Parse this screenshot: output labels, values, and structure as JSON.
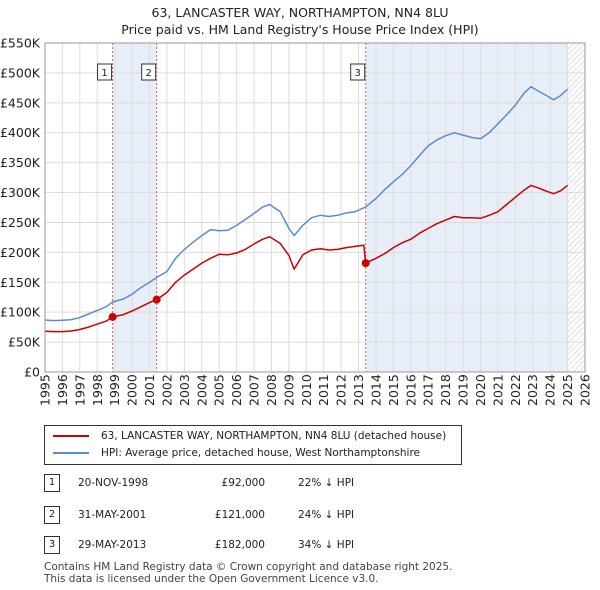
{
  "title_line1": "63, LANCASTER WAY, NORTHAMPTON, NN4 8LU",
  "title_line2": "Price paid vs. HM Land Registry's House Price Index (HPI)",
  "legend": {
    "property_label": "63, LANCASTER WAY, NORTHAMPTON, NN4 8LU (detached house)",
    "hpi_label": "HPI: Average price, detached house, West Northamptonshire"
  },
  "colors": {
    "property": "#cc0000",
    "hpi": "#5b8ccc",
    "band": "#e8eef8",
    "marker_line": "#cc6666",
    "grid": "#dddddd"
  },
  "sales": [
    {
      "num": "1",
      "date": "20-NOV-1998",
      "price": "£92,000",
      "hpi": "22% ↓ HPI"
    },
    {
      "num": "2",
      "date": "31-MAY-2001",
      "price": "£121,000",
      "hpi": "24% ↓ HPI"
    },
    {
      "num": "3",
      "date": "29-MAY-2013",
      "price": "£182,000",
      "hpi": "34% ↓ HPI"
    }
  ],
  "footer_line1": "Contains HM Land Registry data © Crown copyright and database right 2025.",
  "footer_line2": "This data is licensed under the Open Government Licence v3.0.",
  "chart_data": {
    "type": "line",
    "title": "63, LANCASTER WAY, NORTHAMPTON, NN4 8LU — Price paid vs. HM Land Registry's House Price Index (HPI)",
    "xlabel": "",
    "ylabel": "",
    "xlim": [
      1995,
      2026
    ],
    "ylim": [
      0,
      550000
    ],
    "x_ticks": [
      1995,
      1996,
      1997,
      1998,
      1999,
      2000,
      2001,
      2002,
      2003,
      2004,
      2005,
      2006,
      2007,
      2008,
      2009,
      2010,
      2011,
      2012,
      2013,
      2014,
      2015,
      2016,
      2017,
      2018,
      2019,
      2020,
      2021,
      2022,
      2023,
      2024,
      2025,
      2026
    ],
    "y_ticks": [
      {
        "value": 0,
        "label": "£0"
      },
      {
        "value": 50000,
        "label": "£50K"
      },
      {
        "value": 100000,
        "label": "£100K"
      },
      {
        "value": 150000,
        "label": "£150K"
      },
      {
        "value": 200000,
        "label": "£200K"
      },
      {
        "value": 250000,
        "label": "£250K"
      },
      {
        "value": 300000,
        "label": "£300K"
      },
      {
        "value": 350000,
        "label": "£350K"
      },
      {
        "value": 400000,
        "label": "£400K"
      },
      {
        "value": 450000,
        "label": "£450K"
      },
      {
        "value": 500000,
        "label": "£500K"
      },
      {
        "value": 550000,
        "label": "£550K"
      }
    ],
    "grid": true,
    "shaded_periods": [
      [
        1998.88,
        2001.41
      ],
      [
        2013.41,
        2025.0
      ]
    ],
    "future_hatch_from": 2025.0,
    "sale_markers": [
      {
        "label": "1",
        "x": 1998.88,
        "price": 92000
      },
      {
        "label": "2",
        "x": 2001.41,
        "price": 121000
      },
      {
        "label": "3",
        "x": 2013.41,
        "price": 182000
      }
    ],
    "series": [
      {
        "name": "HPI: Average price, detached house, West Northamptonshire",
        "color": "#5b8ccc",
        "points": [
          [
            1995.0,
            87000
          ],
          [
            1995.5,
            86000
          ],
          [
            1996.0,
            86500
          ],
          [
            1996.5,
            87500
          ],
          [
            1997.0,
            91000
          ],
          [
            1997.5,
            97000
          ],
          [
            1998.0,
            103000
          ],
          [
            1998.5,
            109000
          ],
          [
            1998.88,
            117000
          ],
          [
            1999.5,
            122000
          ],
          [
            2000.0,
            130000
          ],
          [
            2000.5,
            141000
          ],
          [
            2001.0,
            150000
          ],
          [
            2001.41,
            158000
          ],
          [
            2002.0,
            168000
          ],
          [
            2002.5,
            190000
          ],
          [
            2003.0,
            205000
          ],
          [
            2003.5,
            217000
          ],
          [
            2004.0,
            228000
          ],
          [
            2004.5,
            238000
          ],
          [
            2005.0,
            236000
          ],
          [
            2005.5,
            237000
          ],
          [
            2006.0,
            245000
          ],
          [
            2006.5,
            255000
          ],
          [
            2007.0,
            265000
          ],
          [
            2007.5,
            276000
          ],
          [
            2007.9,
            280000
          ],
          [
            2008.5,
            268000
          ],
          [
            2009.0,
            240000
          ],
          [
            2009.3,
            228000
          ],
          [
            2009.8,
            245000
          ],
          [
            2010.3,
            258000
          ],
          [
            2010.8,
            262000
          ],
          [
            2011.3,
            260000
          ],
          [
            2011.8,
            262000
          ],
          [
            2012.3,
            266000
          ],
          [
            2012.8,
            268000
          ],
          [
            2013.41,
            276000
          ],
          [
            2014.0,
            290000
          ],
          [
            2014.5,
            305000
          ],
          [
            2015.0,
            318000
          ],
          [
            2015.5,
            330000
          ],
          [
            2016.0,
            345000
          ],
          [
            2016.5,
            362000
          ],
          [
            2017.0,
            378000
          ],
          [
            2017.5,
            388000
          ],
          [
            2018.0,
            395000
          ],
          [
            2018.5,
            400000
          ],
          [
            2019.0,
            396000
          ],
          [
            2019.5,
            392000
          ],
          [
            2020.0,
            390000
          ],
          [
            2020.5,
            400000
          ],
          [
            2021.0,
            415000
          ],
          [
            2021.5,
            430000
          ],
          [
            2022.0,
            446000
          ],
          [
            2022.5,
            466000
          ],
          [
            2022.9,
            477000
          ],
          [
            2023.3,
            470000
          ],
          [
            2023.8,
            462000
          ],
          [
            2024.2,
            455000
          ],
          [
            2024.6,
            462000
          ],
          [
            2025.0,
            473000
          ]
        ]
      },
      {
        "name": "63, LANCASTER WAY, NORTHAMPTON, NN4 8LU (detached house)",
        "color": "#cc0000",
        "points": [
          [
            1995.0,
            68000
          ],
          [
            1995.5,
            67500
          ],
          [
            1996.0,
            67500
          ],
          [
            1996.5,
            68500
          ],
          [
            1997.0,
            71000
          ],
          [
            1997.5,
            75000
          ],
          [
            1998.0,
            80000
          ],
          [
            1998.5,
            85000
          ],
          [
            1998.88,
            92000
          ],
          [
            1999.5,
            96000
          ],
          [
            2000.0,
            102000
          ],
          [
            2000.5,
            109000
          ],
          [
            2001.0,
            116000
          ],
          [
            2001.41,
            121000
          ],
          [
            2002.0,
            133000
          ],
          [
            2002.5,
            150000
          ],
          [
            2003.0,
            162000
          ],
          [
            2003.5,
            172000
          ],
          [
            2004.0,
            182000
          ],
          [
            2004.5,
            190000
          ],
          [
            2005.0,
            197000
          ],
          [
            2005.5,
            196000
          ],
          [
            2006.0,
            199000
          ],
          [
            2006.5,
            205000
          ],
          [
            2007.0,
            214000
          ],
          [
            2007.5,
            222000
          ],
          [
            2007.9,
            226000
          ],
          [
            2008.5,
            215000
          ],
          [
            2009.0,
            195000
          ],
          [
            2009.3,
            172000
          ],
          [
            2009.8,
            196000
          ],
          [
            2010.3,
            204000
          ],
          [
            2010.8,
            206000
          ],
          [
            2011.3,
            204000
          ],
          [
            2011.8,
            205000
          ],
          [
            2012.3,
            208000
          ],
          [
            2012.8,
            210000
          ],
          [
            2013.3,
            212000
          ],
          [
            2013.41,
            182000
          ],
          [
            2014.0,
            190000
          ],
          [
            2014.5,
            198000
          ],
          [
            2015.0,
            208000
          ],
          [
            2015.5,
            216000
          ],
          [
            2016.0,
            222000
          ],
          [
            2016.5,
            232000
          ],
          [
            2017.0,
            240000
          ],
          [
            2017.5,
            248000
          ],
          [
            2018.0,
            254000
          ],
          [
            2018.5,
            260000
          ],
          [
            2019.0,
            258000
          ],
          [
            2019.5,
            258000
          ],
          [
            2020.0,
            257000
          ],
          [
            2020.5,
            262000
          ],
          [
            2021.0,
            268000
          ],
          [
            2021.5,
            280000
          ],
          [
            2022.0,
            292000
          ],
          [
            2022.5,
            304000
          ],
          [
            2022.9,
            312000
          ],
          [
            2023.3,
            308000
          ],
          [
            2023.8,
            302000
          ],
          [
            2024.2,
            298000
          ],
          [
            2024.6,
            303000
          ],
          [
            2025.0,
            312000
          ]
        ]
      }
    ]
  }
}
